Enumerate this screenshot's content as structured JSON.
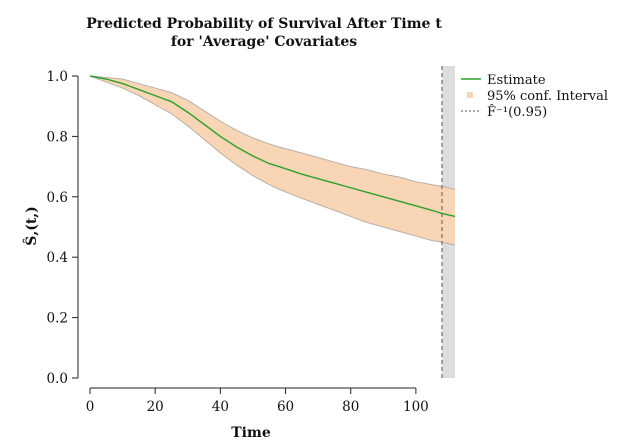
{
  "chart_data": {
    "type": "line",
    "title": "Predicted Probability of Survival After Time t",
    "subtitle": "for 'Average' Covariates",
    "xlabel": "Time",
    "ylabel": "Ŝ,(t,)",
    "xlim": [
      0,
      112
    ],
    "ylim": [
      0,
      1.0
    ],
    "x_ticks": [
      0,
      20,
      40,
      60,
      80,
      100
    ],
    "y_ticks": [
      0.0,
      0.2,
      0.4,
      0.6,
      0.8,
      1.0
    ],
    "x_tick_labels": [
      "0",
      "20",
      "40",
      "60",
      "80",
      "100"
    ],
    "y_tick_labels": [
      "0.0",
      "0.2",
      "0.4",
      "0.6",
      "0.8",
      "1.0"
    ],
    "grid": false,
    "legend_position": "top-right",
    "series": [
      {
        "name": "Estimate",
        "color": "#2ca02c",
        "x": [
          0,
          5,
          10,
          15,
          20,
          25,
          30,
          35,
          40,
          45,
          50,
          55,
          58,
          65,
          70,
          75,
          80,
          85,
          90,
          95,
          100,
          105,
          108,
          112
        ],
        "y": [
          1.0,
          0.99,
          0.975,
          0.955,
          0.935,
          0.915,
          0.88,
          0.84,
          0.8,
          0.765,
          0.735,
          0.71,
          0.7,
          0.675,
          0.66,
          0.645,
          0.63,
          0.615,
          0.6,
          0.585,
          0.57,
          0.555,
          0.545,
          0.535
        ]
      }
    ],
    "confidence_band": {
      "name": "95% conf. Interval",
      "fill_color": "#f8d5b5",
      "edge_color": "#b8b0a8",
      "x": [
        0,
        5,
        10,
        15,
        20,
        25,
        30,
        35,
        40,
        45,
        50,
        55,
        58,
        65,
        70,
        75,
        80,
        85,
        90,
        95,
        100,
        105,
        108,
        112
      ],
      "lower": [
        1.0,
        0.98,
        0.96,
        0.935,
        0.905,
        0.875,
        0.835,
        0.79,
        0.745,
        0.705,
        0.67,
        0.64,
        0.625,
        0.595,
        0.575,
        0.555,
        0.535,
        0.515,
        0.5,
        0.485,
        0.47,
        0.455,
        0.45,
        0.44
      ],
      "upper": [
        1.0,
        0.995,
        0.99,
        0.975,
        0.96,
        0.945,
        0.92,
        0.885,
        0.85,
        0.82,
        0.795,
        0.775,
        0.765,
        0.745,
        0.73,
        0.715,
        0.7,
        0.69,
        0.675,
        0.665,
        0.65,
        0.64,
        0.635,
        0.625
      ]
    },
    "reference_line": {
      "name": "F̂⁻¹(0.95)",
      "x": 108,
      "color": "#555555",
      "style": "dashed"
    },
    "shaded_region": {
      "x_start": 108,
      "x_end": 112,
      "color": "#dddddd"
    }
  }
}
